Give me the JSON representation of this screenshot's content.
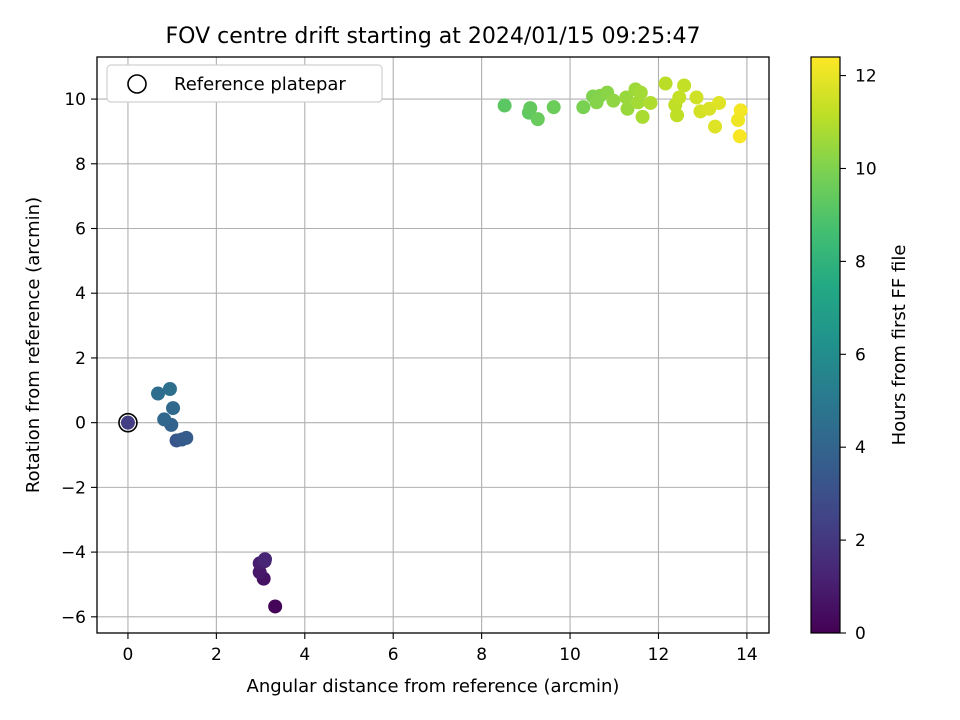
{
  "chart_data": {
    "type": "scatter",
    "title": "FOV centre drift starting at 2024/01/15 09:25:47",
    "xlabel": "Angular distance from reference (arcmin)",
    "ylabel": "Rotation from reference (arcmin)",
    "xlim": [
      -0.7,
      14.5
    ],
    "ylim": [
      -6.5,
      11.3
    ],
    "x_ticks": [
      0,
      2,
      4,
      6,
      8,
      10,
      12,
      14
    ],
    "y_ticks": [
      -6,
      -4,
      -2,
      0,
      2,
      4,
      6,
      8,
      10
    ],
    "grid": true,
    "legend": {
      "placement": "top-left",
      "entries": [
        "Reference platepar"
      ]
    },
    "reference_point": {
      "x": 0,
      "y": 0,
      "label": "Reference platepar"
    },
    "colorbar": {
      "label": "Hours from first FF file",
      "colormap": "viridis",
      "range": [
        0,
        12.4
      ],
      "ticks": [
        0,
        2,
        4,
        6,
        8,
        10,
        12
      ]
    },
    "series": [
      {
        "points": [
          {
            "x": 0.0,
            "y": 0.0,
            "c": 2.2
          },
          {
            "x": 3.33,
            "y": -5.68,
            "c": 0.1
          },
          {
            "x": 3.07,
            "y": -4.82,
            "c": 0.6
          },
          {
            "x": 2.98,
            "y": -4.62,
            "c": 0.8
          },
          {
            "x": 2.98,
            "y": -4.35,
            "c": 1.0
          },
          {
            "x": 3.09,
            "y": -4.28,
            "c": 1.2
          },
          {
            "x": 3.1,
            "y": -4.22,
            "c": 1.3
          },
          {
            "x": 1.1,
            "y": -0.55,
            "c": 3.3
          },
          {
            "x": 1.22,
            "y": -0.52,
            "c": 3.5
          },
          {
            "x": 1.32,
            "y": -0.47,
            "c": 3.6
          },
          {
            "x": 0.98,
            "y": -0.07,
            "c": 3.9
          },
          {
            "x": 0.82,
            "y": 0.1,
            "c": 4.1
          },
          {
            "x": 1.02,
            "y": 0.45,
            "c": 4.2
          },
          {
            "x": 0.68,
            "y": 0.9,
            "c": 4.4
          },
          {
            "x": 0.95,
            "y": 1.04,
            "c": 4.5
          },
          {
            "x": 8.52,
            "y": 9.8,
            "c": 9.2
          },
          {
            "x": 9.07,
            "y": 9.58,
            "c": 9.3
          },
          {
            "x": 9.1,
            "y": 9.72,
            "c": 9.4
          },
          {
            "x": 9.27,
            "y": 9.38,
            "c": 9.5
          },
          {
            "x": 9.63,
            "y": 9.75,
            "c": 9.6
          },
          {
            "x": 10.3,
            "y": 9.75,
            "c": 9.9
          },
          {
            "x": 10.52,
            "y": 10.08,
            "c": 10.0
          },
          {
            "x": 10.6,
            "y": 9.9,
            "c": 10.1
          },
          {
            "x": 10.68,
            "y": 10.1,
            "c": 10.1
          },
          {
            "x": 10.84,
            "y": 10.2,
            "c": 10.2
          },
          {
            "x": 10.98,
            "y": 9.95,
            "c": 10.3
          },
          {
            "x": 11.27,
            "y": 10.05,
            "c": 10.5
          },
          {
            "x": 11.3,
            "y": 9.7,
            "c": 10.5
          },
          {
            "x": 11.48,
            "y": 10.3,
            "c": 10.6
          },
          {
            "x": 11.54,
            "y": 9.9,
            "c": 10.7
          },
          {
            "x": 11.6,
            "y": 10.2,
            "c": 10.7
          },
          {
            "x": 11.64,
            "y": 9.45,
            "c": 10.8
          },
          {
            "x": 11.82,
            "y": 9.88,
            "c": 10.9
          },
          {
            "x": 12.16,
            "y": 10.48,
            "c": 11.1
          },
          {
            "x": 12.38,
            "y": 9.82,
            "c": 11.2
          },
          {
            "x": 12.42,
            "y": 9.5,
            "c": 11.2
          },
          {
            "x": 12.47,
            "y": 10.05,
            "c": 11.3
          },
          {
            "x": 12.58,
            "y": 10.42,
            "c": 11.3
          },
          {
            "x": 12.86,
            "y": 10.05,
            "c": 11.5
          },
          {
            "x": 12.95,
            "y": 9.62,
            "c": 11.6
          },
          {
            "x": 13.15,
            "y": 9.7,
            "c": 11.7
          },
          {
            "x": 13.28,
            "y": 9.15,
            "c": 11.8
          },
          {
            "x": 13.37,
            "y": 9.88,
            "c": 11.8
          },
          {
            "x": 13.8,
            "y": 9.35,
            "c": 12.1
          },
          {
            "x": 13.86,
            "y": 9.65,
            "c": 12.2
          },
          {
            "x": 13.84,
            "y": 8.85,
            "c": 12.3
          }
        ]
      }
    ]
  }
}
